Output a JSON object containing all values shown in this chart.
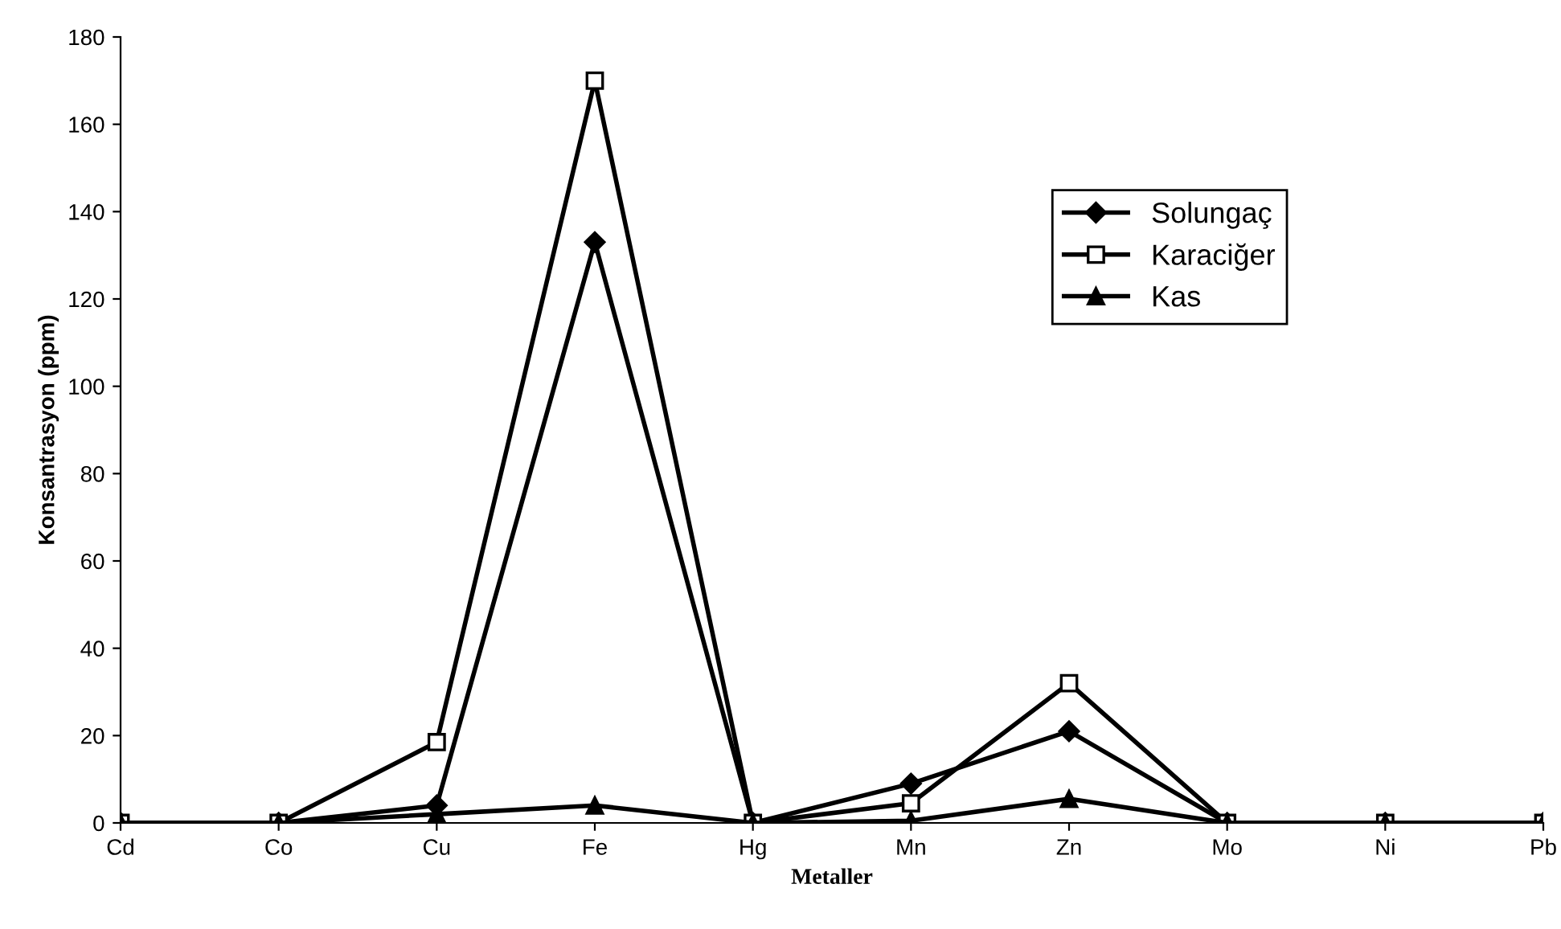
{
  "chart_data": {
    "type": "line",
    "xlabel": "Metaller",
    "ylabel": "Konsantrasyon (ppm)",
    "categories": [
      "Cd",
      "Co",
      "Cu",
      "Fe",
      "Hg",
      "Mn",
      "Zn",
      "Mo",
      "Ni",
      "Pb"
    ],
    "series": [
      {
        "name": "Solungaç",
        "color": "#000000",
        "marker": "diamond",
        "values": [
          0,
          0,
          4,
          133,
          0,
          9,
          21,
          0,
          0,
          0
        ]
      },
      {
        "name": "Karaciğer",
        "color": "#000000",
        "marker": "square",
        "values": [
          0,
          0,
          18.5,
          170,
          0,
          4.5,
          32,
          0,
          0,
          0
        ]
      },
      {
        "name": "Kas",
        "color": "#000000",
        "marker": "triangle",
        "values": [
          0,
          0,
          2,
          4,
          0,
          0.5,
          5.5,
          0,
          0,
          0
        ]
      }
    ],
    "ylim": [
      0,
      180
    ],
    "yticks": [
      0,
      20,
      40,
      60,
      80,
      100,
      120,
      140,
      160,
      180
    ],
    "grid": false,
    "legend": "right",
    "line_style": "solid"
  }
}
